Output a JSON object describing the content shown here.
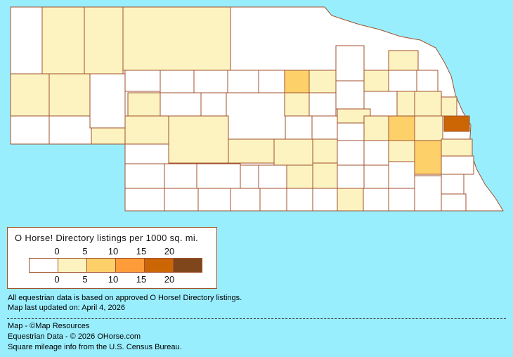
{
  "legend": {
    "title": "O Horse! Directory listings per 1000 sq. mi.",
    "ticks": [
      "0",
      "5",
      "10",
      "15",
      "20"
    ],
    "bins": [
      {
        "range": "0",
        "color": "#ffffff"
      },
      {
        "range": "0-5",
        "color": "#fdf3c0"
      },
      {
        "range": "5-10",
        "color": "#fdd06a"
      },
      {
        "range": "10-15",
        "color": "#fd9c38"
      },
      {
        "range": "15-20",
        "color": "#cc6605"
      },
      {
        "range": "20+",
        "color": "#7f461b"
      }
    ]
  },
  "notes": {
    "data_basis": "All equestrian data is based on approved O Horse! Directory listings.",
    "updated": "Map last updated on: April 4, 2026"
  },
  "credits": {
    "map": "Map - ©Map Resources",
    "data": "Equestrian Data - © 2026 OHorse.com",
    "census": "Square mileage info from the U.S. Census Bureau."
  },
  "map": {
    "region": "Nebraska",
    "background": "#99eefe",
    "border_color": "#a0522d"
  }
}
